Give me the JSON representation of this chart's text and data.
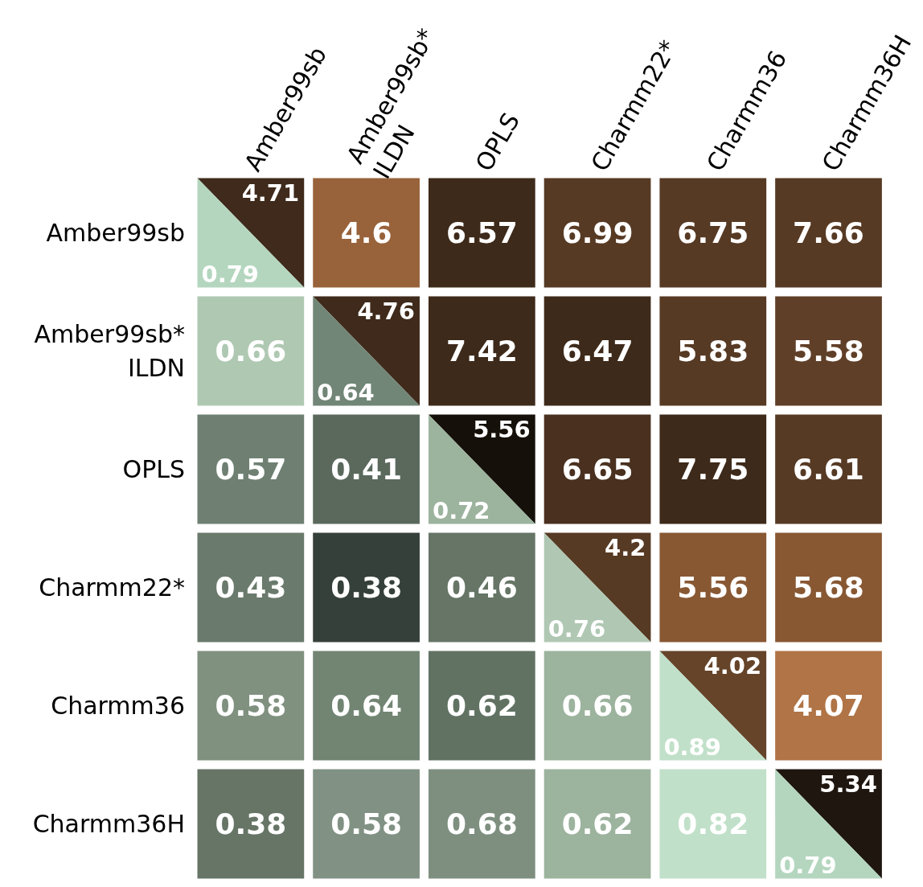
{
  "chart_data": {
    "type": "heatmap",
    "categories": [
      "Amber99sb",
      "Amber99sb* ILDN",
      "OPLS",
      "Charmm22*",
      "Charmm36",
      "Charmm36H"
    ],
    "y_categories": [
      "Amber99sb",
      "Amber99sb* ILDN",
      "OPLS",
      "Charmm22*",
      "Charmm36",
      "Charmm36H"
    ],
    "data_labels": true,
    "cells": [
      [
        4.71,
        4.6,
        6.57,
        6.99,
        6.75,
        7.66
      ],
      [
        0.66,
        4.76,
        7.42,
        6.47,
        5.83,
        5.58
      ],
      [
        0.57,
        0.41,
        5.56,
        6.65,
        7.75,
        6.61
      ],
      [
        0.43,
        0.38,
        0.46,
        4.2,
        5.56,
        5.68
      ],
      [
        0.58,
        0.64,
        0.62,
        0.66,
        4.02,
        4.07
      ],
      [
        0.38,
        0.58,
        0.68,
        0.62,
        0.82,
        5.34
      ]
    ],
    "annotations": [
      "0.79",
      "0.64",
      "0.72",
      "0.76",
      "0.89",
      "0.79"
    ],
    "colors": [
      [
        [
          "#3f2a1b",
          "#b4d6bf"
        ],
        "#98623a",
        "#3e2a1a",
        "#573a24",
        "#573a24",
        "#573a24"
      ],
      [
        "#afc8b2",
        [
          "#3f2a1b",
          "#718676"
        ],
        "#3e2a1a",
        "#3e2a1a",
        "#573a24",
        "#603f28"
      ],
      [
        "#6f8073",
        "#5a695c",
        [
          "#151009",
          "#9cb39e"
        ],
        "#4a301f",
        "#3e2a1a",
        "#573a24"
      ],
      [
        "#6a7a6c",
        "#36403a",
        "#667566",
        [
          "#573a24",
          "#b0c8b3"
        ],
        "#885833",
        "#885833"
      ],
      [
        "#80917f",
        "#728573",
        "#617263",
        "#9cb39e",
        [
          "#654429",
          "#c1e0c9"
        ],
        "#b07446"
      ],
      [
        "#667566",
        "#819284",
        "#7e8f80",
        "#9cb39e",
        "#c1e0c9",
        [
          "#1f1610",
          "#b4d6bf"
        ]
      ]
    ]
  }
}
